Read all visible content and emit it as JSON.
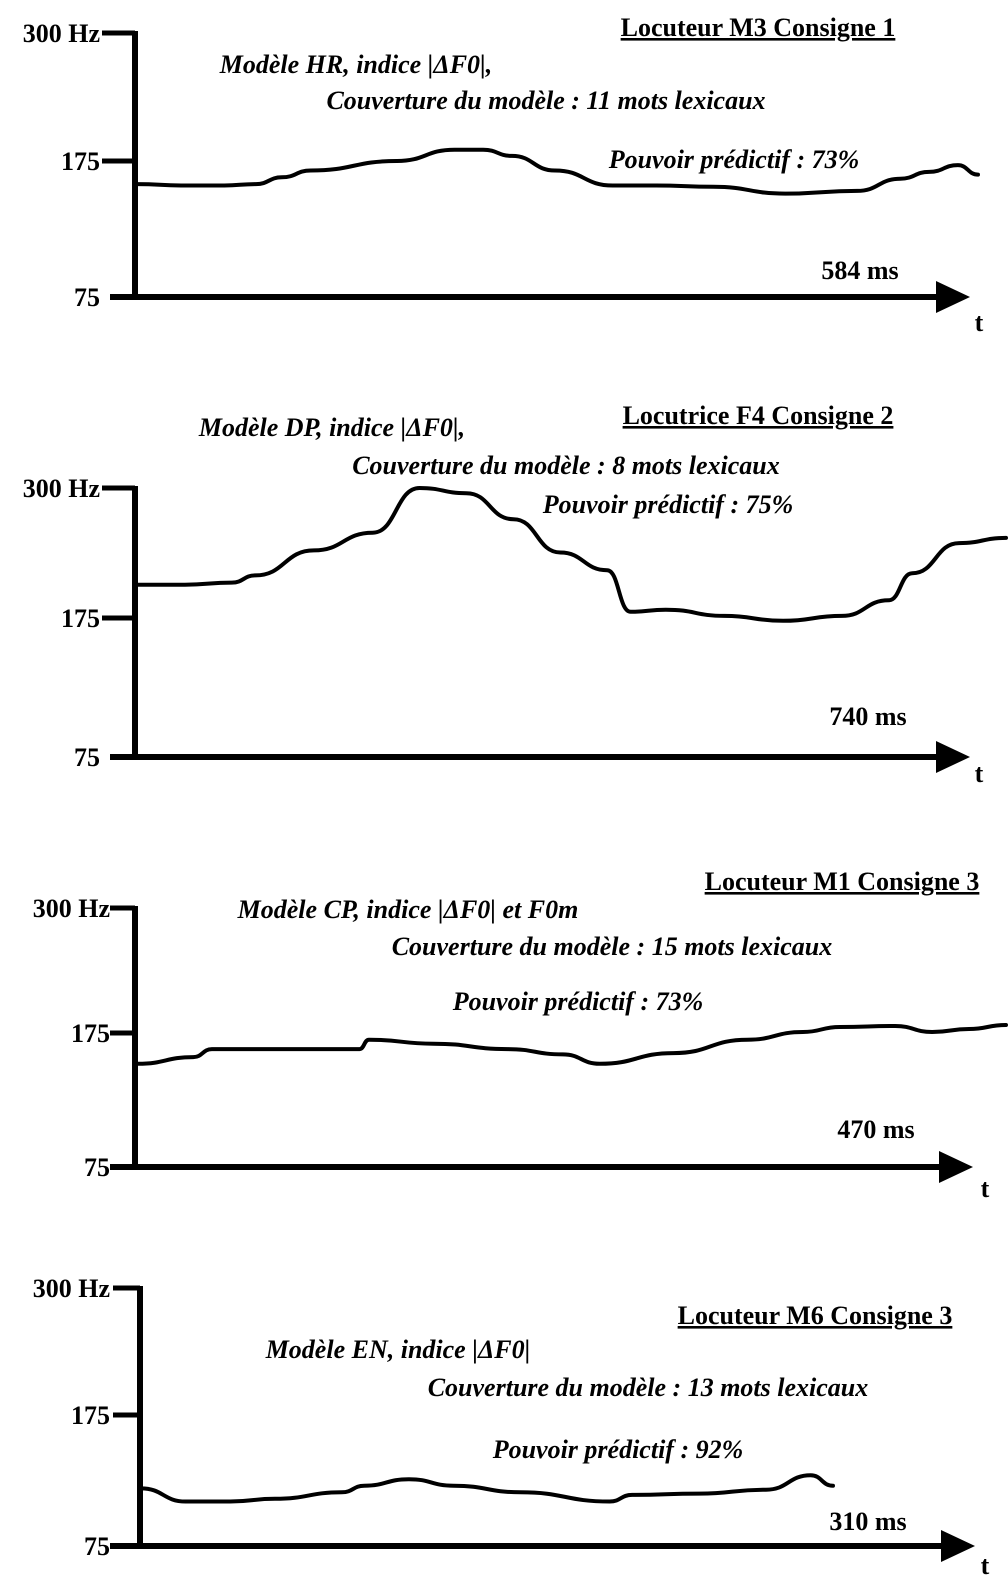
{
  "chart_data": [
    {
      "type": "line",
      "title": "Locuteur M3 Consigne 1",
      "annotations": [
        "Modèle HR, indice |ΔF0|,",
        "Couverture du modèle : 11 mots lexicaux",
        "Pouvoir prédictif : 73%"
      ],
      "ytick_labels": [
        "300 Hz",
        "175",
        "75"
      ],
      "duration_label": "584 ms",
      "xlabel": "t",
      "ylim": [
        75,
        300
      ],
      "xlim": [
        0,
        584
      ],
      "series": [
        {
          "x": [
            0,
            30,
            60,
            82,
            100,
            120,
            180,
            220,
            240,
            260,
            290,
            330,
            360,
            400,
            450,
            500,
            530,
            550,
            570,
            584
          ],
          "values": [
            158,
            157,
            157,
            158,
            163,
            168,
            175,
            186,
            186,
            180,
            168,
            157,
            157,
            156,
            151,
            153,
            162,
            167,
            172,
            165
          ]
        }
      ]
    },
    {
      "type": "line",
      "title": "Locutrice F4 Consigne 2",
      "annotations": [
        "Modèle DP, indice |ΔF0|,",
        "Couverture du modèle : 8 mots lexicaux",
        "Pouvoir prédictif : 75%"
      ],
      "ytick_labels": [
        "300 Hz",
        "175",
        "75"
      ],
      "duration_label": "740 ms",
      "xlabel": "t",
      "ylim": [
        75,
        300
      ],
      "xlim": [
        0,
        740
      ],
      "series": [
        {
          "x": [
            0,
            40,
            80,
            100,
            150,
            200,
            240,
            280,
            320,
            360,
            400,
            420,
            450,
            500,
            550,
            600,
            640,
            660,
            700,
            740
          ],
          "values": [
            207,
            207,
            209,
            216,
            240,
            257,
            300,
            295,
            270,
            238,
            221,
            181,
            183,
            177,
            173,
            177,
            192,
            218,
            247,
            252
          ]
        }
      ]
    },
    {
      "type": "line",
      "title": "Locuteur M1 Consigne 3",
      "annotations": [
        "Modèle CP, indice |ΔF0| et F0m",
        "Couverture du modèle : 15 mots lexicaux",
        "Pouvoir prédictif : 73%"
      ],
      "ytick_labels": [
        "300 Hz",
        "175",
        "75"
      ],
      "duration_label": "470 ms",
      "xlabel": "t",
      "ylim": [
        75,
        300
      ],
      "xlim": [
        0,
        470
      ],
      "series": [
        {
          "x": [
            0,
            30,
            40,
            90,
            120,
            125,
            160,
            200,
            230,
            250,
            290,
            330,
            360,
            380,
            410,
            430,
            450,
            470
          ],
          "values": [
            152,
            157,
            163,
            163,
            163,
            170,
            167,
            163,
            159,
            152,
            160,
            170,
            176,
            181,
            182,
            176,
            179,
            183
          ]
        }
      ]
    },
    {
      "type": "line",
      "title": "Locuteur M6 Consigne 3",
      "annotations": [
        "Modèle EN, indice |ΔF0|",
        "Couverture du modèle : 13 mots lexicaux",
        "Pouvoir prédictif : 92%"
      ],
      "ytick_labels": [
        "300 Hz",
        "175",
        "75"
      ],
      "duration_label": "310 ms",
      "xlabel": "t",
      "ylim": [
        75,
        300
      ],
      "xlim": [
        0,
        310
      ],
      "series": [
        {
          "x": [
            0,
            20,
            40,
            60,
            90,
            100,
            120,
            140,
            170,
            210,
            220,
            250,
            280,
            300,
            310
          ],
          "values": [
            119,
            109,
            109,
            111,
            116,
            121,
            126,
            121,
            116,
            109,
            114,
            115,
            118,
            129,
            121
          ]
        }
      ]
    }
  ]
}
